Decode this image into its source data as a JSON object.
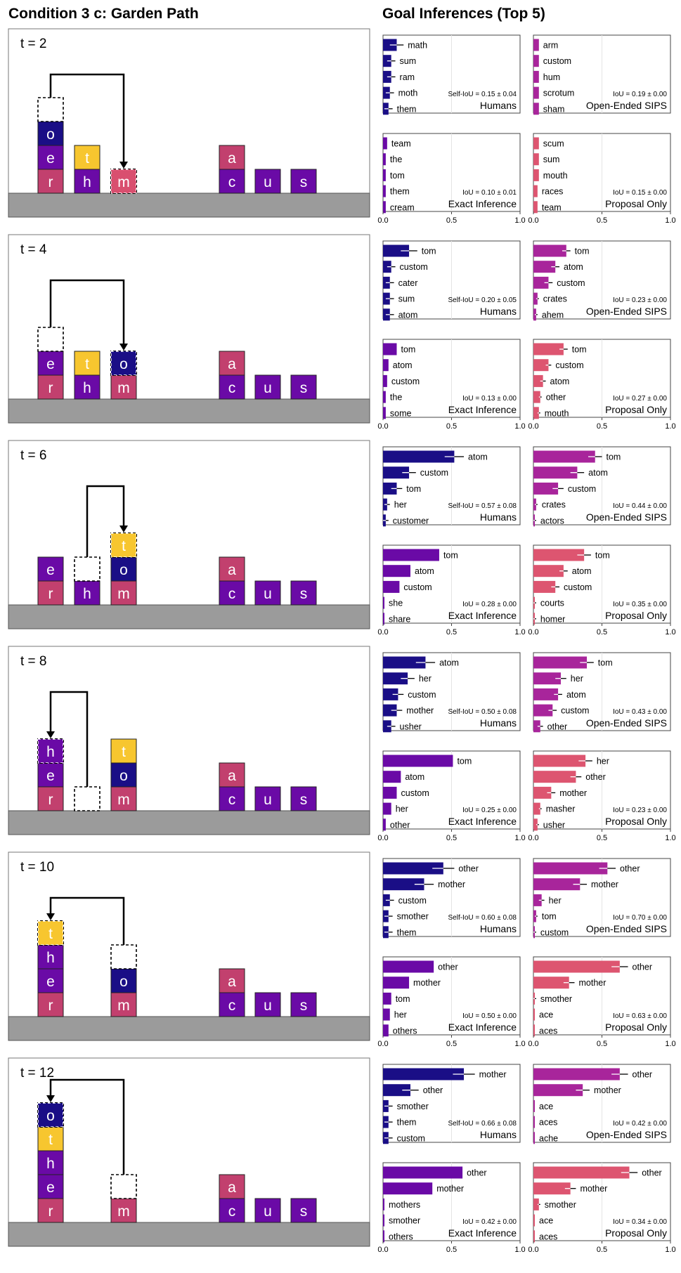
{
  "title_left": "Condition 3 c: Garden Path",
  "title_right": "Goal Inferences (Top 5)",
  "colors": {
    "navy": "#1a0e86",
    "purple": "#6a0aa6",
    "magenta": "#b0279a",
    "rose": "#d94f6f",
    "pink": "#c2406e",
    "yellow": "#f7c62f",
    "ground": "#9b9b9b",
    "humans": "#1a0e86",
    "sips": "#a8259b",
    "exact": "#6a0aa6",
    "proposal": "#dd5570"
  },
  "axis_ticks": [
    "0.0",
    "0.5",
    "1.0"
  ],
  "panel_names": {
    "humans": "Humans",
    "sips": "Open-Ended SIPS",
    "exact": "Exact Inference",
    "proposal": "Proposal Only"
  },
  "chart_data": [
    {
      "type": "bar",
      "orientation": "horizontal",
      "xlim": [
        0,
        1
      ],
      "timestep": "t = 2",
      "humans": {
        "labels": [
          "math",
          "sum",
          "ram",
          "moth",
          "them"
        ],
        "values": [
          0.1,
          0.06,
          0.06,
          0.05,
          0.04
        ],
        "err": [
          0.05,
          0.03,
          0.03,
          0.03,
          0.03
        ],
        "iou": "Self-IoU = 0.15 ± 0.04"
      },
      "sips": {
        "labels": [
          "arm",
          "custom",
          "hum",
          "scrotum",
          "sham"
        ],
        "values": [
          0.04,
          0.04,
          0.04,
          0.04,
          0.04
        ],
        "err": [
          0,
          0,
          0,
          0,
          0
        ],
        "iou": "IoU = 0.19 ± 0.00"
      },
      "exact": {
        "labels": [
          "team",
          "the",
          "tom",
          "them",
          "cream"
        ],
        "values": [
          0.03,
          0.02,
          0.02,
          0.02,
          0.02
        ],
        "err": [
          0,
          0,
          0,
          0,
          0
        ],
        "iou": "IoU = 0.10 ± 0.01"
      },
      "proposal": {
        "labels": [
          "scum",
          "sum",
          "mouth",
          "races",
          "team"
        ],
        "values": [
          0.04,
          0.04,
          0.04,
          0.03,
          0.03
        ],
        "err": [
          0,
          0,
          0,
          0,
          0
        ],
        "iou": "IoU = 0.15 ± 0.00"
      }
    },
    {
      "type": "bar",
      "orientation": "horizontal",
      "xlim": [
        0,
        1
      ],
      "timestep": "t = 4",
      "humans": {
        "labels": [
          "tom",
          "custom",
          "cater",
          "sum",
          "atom"
        ],
        "values": [
          0.19,
          0.06,
          0.05,
          0.05,
          0.05
        ],
        "err": [
          0.06,
          0.03,
          0.03,
          0.03,
          0.03
        ],
        "iou": "Self-IoU = 0.20 ± 0.05"
      },
      "sips": {
        "labels": [
          "tom",
          "atom",
          "custom",
          "crates",
          "ahem"
        ],
        "values": [
          0.24,
          0.16,
          0.11,
          0.03,
          0.02
        ],
        "err": [
          0.03,
          0.03,
          0.03,
          0.01,
          0.01
        ],
        "iou": "IoU = 0.23 ± 0.00"
      },
      "exact": {
        "labels": [
          "tom",
          "atom",
          "custom",
          "the",
          "some"
        ],
        "values": [
          0.1,
          0.04,
          0.03,
          0.02,
          0.02
        ],
        "err": [
          0,
          0,
          0,
          0,
          0
        ],
        "iou": "IoU = 0.13 ± 0.00"
      },
      "proposal": {
        "labels": [
          "tom",
          "custom",
          "atom",
          "other",
          "mouth"
        ],
        "values": [
          0.22,
          0.11,
          0.07,
          0.05,
          0.04
        ],
        "err": [
          0.03,
          0.02,
          0.02,
          0.01,
          0.01
        ],
        "iou": "IoU = 0.27 ± 0.00"
      }
    },
    {
      "type": "bar",
      "orientation": "horizontal",
      "xlim": [
        0,
        1
      ],
      "timestep": "t = 6",
      "humans": {
        "labels": [
          "atom",
          "custom",
          "tom",
          "her",
          "customer"
        ],
        "values": [
          0.52,
          0.19,
          0.1,
          0.03,
          0.02
        ],
        "err": [
          0.07,
          0.05,
          0.04,
          0.02,
          0.02
        ],
        "iou": "Self-IoU = 0.57 ± 0.08"
      },
      "sips": {
        "labels": [
          "tom",
          "atom",
          "custom",
          "crates",
          "actors"
        ],
        "values": [
          0.45,
          0.32,
          0.18,
          0.02,
          0.01
        ],
        "err": [
          0.05,
          0.05,
          0.04,
          0.01,
          0.01
        ],
        "iou": "IoU = 0.44 ± 0.00"
      },
      "exact": {
        "labels": [
          "tom",
          "atom",
          "custom",
          "she",
          "share"
        ],
        "values": [
          0.41,
          0.2,
          0.12,
          0.01,
          0.01
        ],
        "err": [
          0,
          0,
          0,
          0,
          0
        ],
        "iou": "IoU = 0.28 ± 0.00"
      },
      "proposal": {
        "labels": [
          "tom",
          "atom",
          "custom",
          "courts",
          "homer"
        ],
        "values": [
          0.37,
          0.22,
          0.16,
          0.01,
          0.01
        ],
        "err": [
          0.05,
          0.03,
          0.03,
          0.01,
          0.01
        ],
        "iou": "IoU = 0.35 ± 0.00"
      }
    },
    {
      "type": "bar",
      "orientation": "horizontal",
      "xlim": [
        0,
        1
      ],
      "timestep": "t = 8",
      "humans": {
        "labels": [
          "atom",
          "her",
          "custom",
          "mother",
          "usher"
        ],
        "values": [
          0.31,
          0.18,
          0.11,
          0.1,
          0.06
        ],
        "err": [
          0.07,
          0.05,
          0.04,
          0.04,
          0.03
        ],
        "iou": "Self-IoU = 0.50 ± 0.08"
      },
      "sips": {
        "labels": [
          "tom",
          "her",
          "atom",
          "custom",
          "other"
        ],
        "values": [
          0.39,
          0.2,
          0.18,
          0.14,
          0.05
        ],
        "err": [
          0.05,
          0.04,
          0.03,
          0.03,
          0.02
        ],
        "iou": "IoU = 0.43 ± 0.00"
      },
      "exact": {
        "labels": [
          "tom",
          "atom",
          "custom",
          "her",
          "other"
        ],
        "values": [
          0.51,
          0.13,
          0.1,
          0.06,
          0.02
        ],
        "err": [
          0,
          0,
          0,
          0,
          0
        ],
        "iou": "IoU = 0.25 ± 0.00"
      },
      "proposal": {
        "labels": [
          "her",
          "other",
          "mother",
          "masher",
          "usher"
        ],
        "values": [
          0.38,
          0.31,
          0.13,
          0.05,
          0.03
        ],
        "err": [
          0.05,
          0.04,
          0.03,
          0.01,
          0.01
        ],
        "iou": "IoU = 0.23 ± 0.00"
      }
    },
    {
      "type": "bar",
      "orientation": "horizontal",
      "xlim": [
        0,
        1
      ],
      "timestep": "t = 10",
      "humans": {
        "labels": [
          "other",
          "mother",
          "custom",
          "smother",
          "them"
        ],
        "values": [
          0.44,
          0.3,
          0.05,
          0.04,
          0.04
        ],
        "err": [
          0.08,
          0.07,
          0.03,
          0.03,
          0.03
        ],
        "iou": "Self-IoU = 0.60 ± 0.08"
      },
      "sips": {
        "labels": [
          "other",
          "mother",
          "her",
          "tom",
          "custom"
        ],
        "values": [
          0.54,
          0.34,
          0.06,
          0.02,
          0.01
        ],
        "err": [
          0.06,
          0.05,
          0.02,
          0.01,
          0.01
        ],
        "iou": "IoU = 0.70 ± 0.00"
      },
      "exact": {
        "labels": [
          "other",
          "mother",
          "tom",
          "her",
          "others"
        ],
        "values": [
          0.37,
          0.19,
          0.06,
          0.05,
          0.04
        ],
        "err": [
          0,
          0,
          0,
          0,
          0
        ],
        "iou": "IoU = 0.50 ± 0.00"
      },
      "proposal": {
        "labels": [
          "other",
          "mother",
          "smother",
          "ace",
          "aces"
        ],
        "values": [
          0.63,
          0.26,
          0.01,
          0.0,
          0.0
        ],
        "err": [
          0.06,
          0.04,
          0.01,
          0,
          0
        ],
        "iou": "IoU = 0.63 ± 0.00"
      }
    },
    {
      "type": "bar",
      "orientation": "horizontal",
      "xlim": [
        0,
        1
      ],
      "timestep": "t = 12",
      "humans": {
        "labels": [
          "mother",
          "other",
          "smother",
          "them",
          "custom"
        ],
        "values": [
          0.59,
          0.2,
          0.04,
          0.04,
          0.04
        ],
        "err": [
          0.08,
          0.06,
          0.03,
          0.03,
          0.03
        ],
        "iou": "Self-IoU = 0.66 ± 0.08"
      },
      "sips": {
        "labels": [
          "other",
          "mother",
          "ace",
          "aces",
          "ache"
        ],
        "values": [
          0.63,
          0.36,
          0.0,
          0.0,
          0.0
        ],
        "err": [
          0.06,
          0.05,
          0,
          0,
          0
        ],
        "iou": "IoU = 0.42 ± 0.00"
      },
      "exact": {
        "labels": [
          "other",
          "mother",
          "mothers",
          "smother",
          "others"
        ],
        "values": [
          0.58,
          0.36,
          0.01,
          0.01,
          0.01
        ],
        "err": [
          0,
          0,
          0,
          0,
          0
        ],
        "iou": "IoU = 0.42 ± 0.00"
      },
      "proposal": {
        "labels": [
          "other",
          "mother",
          "smother",
          "ace",
          "aces"
        ],
        "values": [
          0.7,
          0.27,
          0.04,
          0.0,
          0.0
        ],
        "err": [
          0.06,
          0.04,
          0.01,
          0,
          0
        ],
        "iou": "IoU = 0.34 ± 0.00"
      }
    }
  ],
  "scenes": [
    {
      "stacks": [
        [
          [
            "r",
            "pink"
          ],
          [
            "e",
            "purple"
          ],
          [
            "o",
            "navy"
          ],
          [
            null,
            "empty-dashed"
          ]
        ],
        [
          [
            "h",
            "purple"
          ],
          [
            "t",
            "yellow"
          ]
        ],
        [
          [
            "m",
            "rose-dashed"
          ]
        ],
        [],
        [],
        [
          [
            "c",
            "purple"
          ],
          [
            "a",
            "pink"
          ]
        ],
        [
          [
            "u",
            "purple"
          ]
        ],
        [
          [
            "s",
            "purple"
          ]
        ]
      ],
      "arrow": {
        "from": 0,
        "to": 2,
        "to_level": 0
      }
    },
    {
      "stacks": [
        [
          [
            "r",
            "pink"
          ],
          [
            "e",
            "purple"
          ],
          [
            null,
            "empty-dashed"
          ]
        ],
        [
          [
            "h",
            "purple"
          ],
          [
            "t",
            "yellow"
          ]
        ],
        [
          [
            "m",
            "pink"
          ],
          [
            "o",
            "navy-dashed"
          ]
        ],
        [],
        [],
        [
          [
            "c",
            "purple"
          ],
          [
            "a",
            "pink"
          ]
        ],
        [
          [
            "u",
            "purple"
          ]
        ],
        [
          [
            "s",
            "purple"
          ]
        ]
      ],
      "arrow": {
        "from": 0,
        "to": 2,
        "to_level": 1
      }
    },
    {
      "stacks": [
        [
          [
            "r",
            "pink"
          ],
          [
            "e",
            "purple"
          ]
        ],
        [
          [
            "h",
            "purple"
          ],
          [
            null,
            "empty-dashed"
          ]
        ],
        [
          [
            "m",
            "pink"
          ],
          [
            "o",
            "navy"
          ],
          [
            "t",
            "yellow-dashed"
          ]
        ],
        [],
        [],
        [
          [
            "c",
            "purple"
          ],
          [
            "a",
            "pink"
          ]
        ],
        [
          [
            "u",
            "purple"
          ]
        ],
        [
          [
            "s",
            "purple"
          ]
        ]
      ],
      "arrow": {
        "from": 1,
        "to": 2,
        "to_level": 2
      }
    },
    {
      "stacks": [
        [
          [
            "r",
            "pink"
          ],
          [
            "e",
            "purple"
          ],
          [
            "h",
            "purple-dashed"
          ]
        ],
        [
          [
            null,
            "empty-dashed"
          ]
        ],
        [
          [
            "m",
            "pink"
          ],
          [
            "o",
            "navy"
          ],
          [
            "t",
            "yellow"
          ]
        ],
        [],
        [],
        [
          [
            "c",
            "purple"
          ],
          [
            "a",
            "pink"
          ]
        ],
        [
          [
            "u",
            "purple"
          ]
        ],
        [
          [
            "s",
            "purple"
          ]
        ]
      ],
      "arrow": {
        "from": 1,
        "to": 0,
        "to_level": 2
      }
    },
    {
      "stacks": [
        [
          [
            "r",
            "pink"
          ],
          [
            "e",
            "purple"
          ],
          [
            "h",
            "purple"
          ],
          [
            "t",
            "yellow-dashed"
          ]
        ],
        [],
        [
          [
            "m",
            "pink"
          ],
          [
            "o",
            "navy"
          ],
          [
            null,
            "empty-dashed"
          ]
        ],
        [],
        [],
        [
          [
            "c",
            "purple"
          ],
          [
            "a",
            "pink"
          ]
        ],
        [
          [
            "u",
            "purple"
          ]
        ],
        [
          [
            "s",
            "purple"
          ]
        ]
      ],
      "arrow": {
        "from": 2,
        "to": 0,
        "to_level": 3
      }
    },
    {
      "stacks": [
        [
          [
            "r",
            "pink"
          ],
          [
            "e",
            "purple"
          ],
          [
            "h",
            "purple"
          ],
          [
            "t",
            "yellow"
          ],
          [
            "o",
            "navy-dashed"
          ]
        ],
        [],
        [
          [
            "m",
            "pink"
          ],
          [
            null,
            "empty-dashed"
          ]
        ],
        [],
        [],
        [
          [
            "c",
            "purple"
          ],
          [
            "a",
            "pink"
          ]
        ],
        [
          [
            "u",
            "purple"
          ]
        ],
        [
          [
            "s",
            "purple"
          ]
        ]
      ],
      "arrow": {
        "from": 2,
        "to": 0,
        "to_level": 4
      }
    }
  ]
}
